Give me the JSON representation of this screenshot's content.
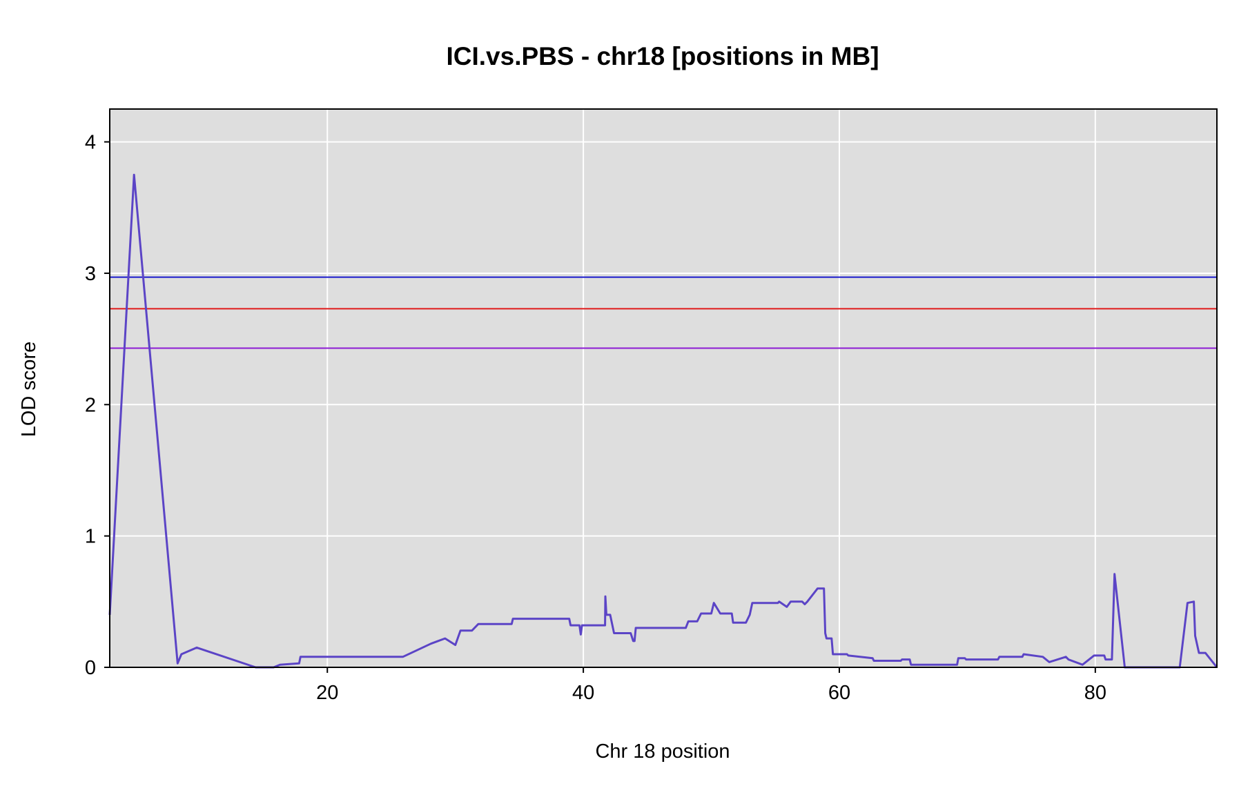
{
  "chart_data": {
    "type": "line",
    "title": "ICI.vs.PBS - chr18 [positions in MB]",
    "xlabel": "Chr 18 position",
    "ylabel": "LOD score",
    "xlim": [
      3.0,
      89.5
    ],
    "ylim": [
      0,
      4.25
    ],
    "xticks": [
      20,
      40,
      60,
      80
    ],
    "yticks": [
      0,
      1,
      2,
      3,
      4
    ],
    "grid": true,
    "background": "#dedede",
    "thresholds": [
      {
        "value": 2.97,
        "color": "#1a1acc"
      },
      {
        "value": 2.73,
        "color": "#e01a1a"
      },
      {
        "value": 2.43,
        "color": "#8c1ad4"
      }
    ],
    "series": [
      {
        "color": "#5b44c6",
        "x": [
          3.0,
          4.9,
          8.3,
          8.6,
          9.8,
          14.4,
          15.8,
          16.3,
          17.8,
          17.9,
          25.9,
          28.1,
          29.2,
          30.0,
          30.4,
          31.3,
          31.8,
          34.4,
          34.5,
          38.9,
          39.0,
          39.7,
          39.8,
          39.9,
          40.3,
          41.7,
          41.72,
          41.8,
          42.1,
          42.4,
          43.7,
          43.9,
          44.0,
          44.1,
          48.0,
          48.2,
          48.9,
          49.2,
          50.0,
          50.2,
          50.7,
          51.6,
          51.7,
          52.7,
          53.0,
          53.2,
          55.2,
          55.3,
          55.9,
          56.2,
          57.1,
          57.3,
          57.5,
          58.3,
          58.8,
          58.9,
          59.0,
          59.4,
          59.5,
          60.6,
          60.7,
          62.6,
          62.7,
          64.8,
          64.9,
          65.5,
          65.6,
          69.2,
          69.3,
          69.8,
          69.9,
          72.4,
          72.5,
          74.3,
          74.4,
          75.9,
          76.4,
          77.7,
          77.9,
          79.0,
          79.9,
          80.7,
          80.8,
          81.3,
          81.5,
          82.3,
          82.4,
          86.6,
          87.2,
          87.7,
          87.8,
          88.1,
          88.6,
          89.5
        ],
        "y": [
          0.4,
          3.75,
          0.03,
          0.1,
          0.15,
          0.0,
          0.0,
          0.02,
          0.03,
          0.08,
          0.08,
          0.18,
          0.22,
          0.17,
          0.28,
          0.28,
          0.33,
          0.33,
          0.37,
          0.37,
          0.32,
          0.32,
          0.25,
          0.32,
          0.32,
          0.32,
          0.54,
          0.4,
          0.4,
          0.26,
          0.26,
          0.2,
          0.2,
          0.3,
          0.3,
          0.35,
          0.35,
          0.41,
          0.41,
          0.49,
          0.41,
          0.41,
          0.34,
          0.34,
          0.4,
          0.49,
          0.49,
          0.5,
          0.46,
          0.5,
          0.5,
          0.48,
          0.5,
          0.6,
          0.6,
          0.26,
          0.22,
          0.22,
          0.1,
          0.1,
          0.09,
          0.07,
          0.05,
          0.05,
          0.06,
          0.06,
          0.02,
          0.02,
          0.07,
          0.07,
          0.06,
          0.06,
          0.08,
          0.08,
          0.1,
          0.08,
          0.04,
          0.08,
          0.06,
          0.02,
          0.09,
          0.09,
          0.06,
          0.06,
          0.71,
          0.0,
          0.0,
          0.0,
          0.49,
          0.5,
          0.24,
          0.11,
          0.11,
          0.0
        ]
      }
    ]
  }
}
